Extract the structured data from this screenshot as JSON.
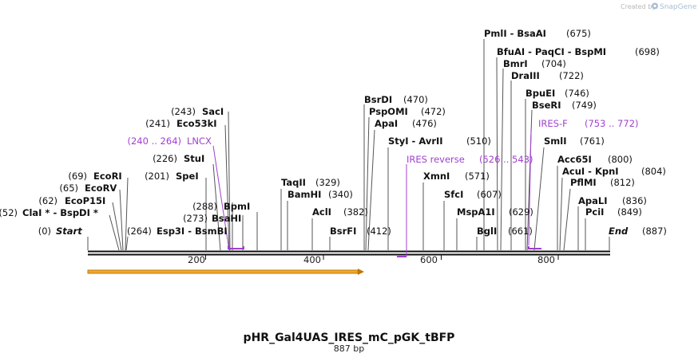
{
  "credit": {
    "prefix": "Created by",
    "brand": "SnapGene"
  },
  "map": {
    "name": "pHR_Gal4UAS_IRES_mC_pGK_tBFP",
    "length_label": "887 bp",
    "length": 887,
    "ticks": [
      "200",
      "400",
      "600",
      "800"
    ]
  },
  "site_labels": [
    {
      "pos": "(0)",
      "name": "Start",
      "kind": "terminus"
    },
    {
      "pos": "(52)",
      "name": "ClaI * - BspDI *",
      "kind": "enzyme"
    },
    {
      "pos": "(62)",
      "name": "EcoP15I",
      "kind": "enzyme"
    },
    {
      "pos": "(65)",
      "name": "EcoRV",
      "kind": "enzyme"
    },
    {
      "pos": "(69)",
      "name": "EcoRI",
      "kind": "enzyme"
    },
    {
      "pos": "(201)",
      "name": "SpeI",
      "kind": "enzyme"
    },
    {
      "pos": "(226)",
      "name": "StuI",
      "kind": "enzyme"
    },
    {
      "pos": "(241)",
      "name": "Eco53kI",
      "kind": "enzyme"
    },
    {
      "pos": "(243)",
      "name": "SacI",
      "kind": "enzyme"
    },
    {
      "pos": "(264)",
      "name": "Esp3I - BsmBI",
      "kind": "enzyme"
    },
    {
      "pos": "(273)",
      "name": "BsaHI",
      "kind": "enzyme"
    },
    {
      "pos": "(288)",
      "name": "BpmI",
      "kind": "enzyme"
    },
    {
      "pos": "(329)",
      "name": "TaqII",
      "kind": "enzyme"
    },
    {
      "pos": "(340)",
      "name": "BamHI",
      "kind": "enzyme"
    },
    {
      "pos": "(382)",
      "name": "AclI",
      "kind": "enzyme"
    },
    {
      "pos": "(412)",
      "name": "BsrFI",
      "kind": "enzyme"
    },
    {
      "pos": "(470)",
      "name": "BsrDI",
      "kind": "enzyme"
    },
    {
      "pos": "(472)",
      "name": "PspOMI",
      "kind": "enzyme"
    },
    {
      "pos": "(476)",
      "name": "ApaI",
      "kind": "enzyme"
    },
    {
      "pos": "(510)",
      "name": "StyI - AvrII",
      "kind": "enzyme"
    },
    {
      "pos": "(571)",
      "name": "XmnI",
      "kind": "enzyme"
    },
    {
      "pos": "(607)",
      "name": "SfcI",
      "kind": "enzyme"
    },
    {
      "pos": "(629)",
      "name": "MspA1I",
      "kind": "enzyme"
    },
    {
      "pos": "(661)",
      "name": "BglI",
      "kind": "enzyme"
    },
    {
      "pos": "(675)",
      "name": "PmlI - BsaAI",
      "kind": "enzyme"
    },
    {
      "pos": "(698)",
      "name": "BfuAI - PaqCI - BspMI",
      "kind": "enzyme"
    },
    {
      "pos": "(704)",
      "name": "BmrI",
      "kind": "enzyme"
    },
    {
      "pos": "(722)",
      "name": "DraIII",
      "kind": "enzyme"
    },
    {
      "pos": "(746)",
      "name": "BpuEI",
      "kind": "enzyme"
    },
    {
      "pos": "(749)",
      "name": "BseRI",
      "kind": "enzyme"
    },
    {
      "pos": "(761)",
      "name": "SmlI",
      "kind": "enzyme"
    },
    {
      "pos": "(800)",
      "name": "Acc65I",
      "kind": "enzyme"
    },
    {
      "pos": "(804)",
      "name": "AcuI - KpnI",
      "kind": "enzyme"
    },
    {
      "pos": "(812)",
      "name": "PflMI",
      "kind": "enzyme"
    },
    {
      "pos": "(836)",
      "name": "ApaLI",
      "kind": "enzyme"
    },
    {
      "pos": "(849)",
      "name": "PciI",
      "kind": "enzyme"
    },
    {
      "pos": "(887)",
      "name": "End",
      "kind": "terminus"
    }
  ],
  "primers": [
    {
      "name": "LNCX",
      "range": "(240 .. 264)"
    },
    {
      "name": "IRES reverse",
      "range": "(526 .. 543)"
    },
    {
      "name": "IRES-F",
      "range": "(753 .. 772)"
    }
  ],
  "colors": {
    "enzyme_text": "#111111",
    "primer": "#a040d0",
    "feature_fill": "#f0a830",
    "feature_stroke": "#c07800",
    "backbone": "#111111"
  }
}
